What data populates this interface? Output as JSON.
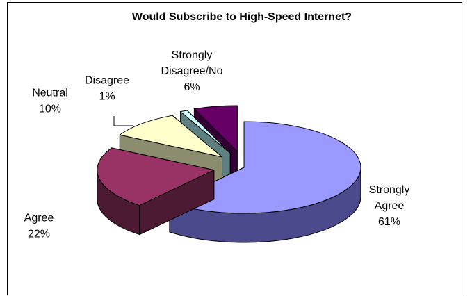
{
  "chart_data": {
    "type": "pie",
    "title": "Would Subscribe to High-Speed Internet?",
    "slices": [
      {
        "name": "Strongly Agree",
        "label_lines": [
          "Strongly",
          "Agree"
        ],
        "value": 61,
        "value_label": "61%",
        "top_color": "#9999ff",
        "side_color": "#4a4a8c"
      },
      {
        "name": "Agree",
        "label_lines": [
          "Agree"
        ],
        "value": 22,
        "value_label": "22%",
        "top_color": "#993366",
        "side_color": "#4d1a33"
      },
      {
        "name": "Neutral",
        "label_lines": [
          "Neutral"
        ],
        "value": 10,
        "value_label": "10%",
        "top_color": "#ffffcc",
        "side_color": "#8c8c6e"
      },
      {
        "name": "Disagree",
        "label_lines": [
          "Disagree"
        ],
        "value": 1,
        "value_label": "1%",
        "top_color": "#ccffff",
        "side_color": "#5e8080"
      },
      {
        "name": "Strongly Disagree/No",
        "label_lines": [
          "Strongly",
          "Disagree/No"
        ],
        "value": 6,
        "value_label": "6%",
        "top_color": "#660066",
        "side_color": "#330033"
      }
    ],
    "style": "3d-exploded"
  }
}
